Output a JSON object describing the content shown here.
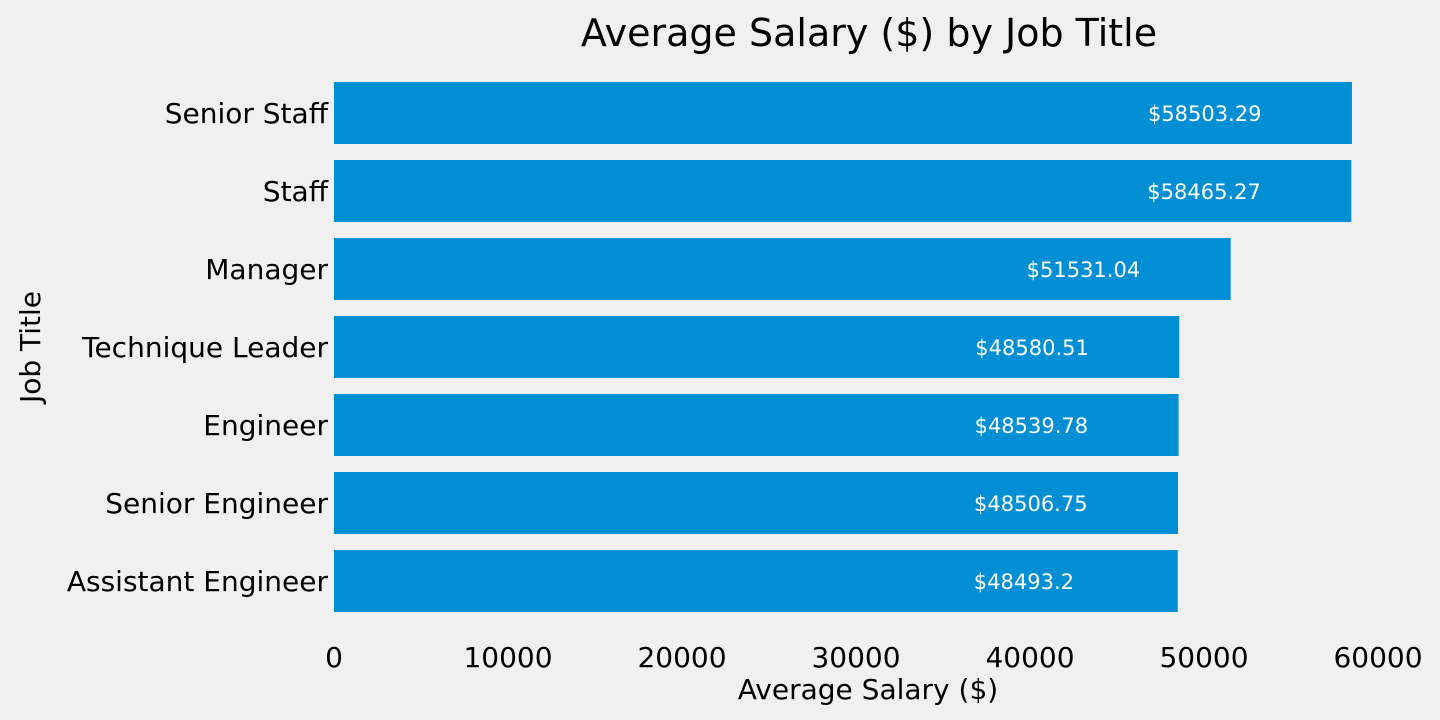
{
  "chart_data": {
    "type": "bar",
    "orientation": "horizontal",
    "title": "Average Salary ($) by Job Title",
    "xlabel": "Average Salary ($)",
    "ylabel": "Job Title",
    "xlim": [
      0,
      60000
    ],
    "xticks": [
      0,
      10000,
      20000,
      30000,
      40000,
      50000,
      60000
    ],
    "grid": false,
    "bar_color": "#008fd5",
    "background_color": "#f0f0f0",
    "categories": [
      "Senior Staff",
      "Staff",
      "Manager",
      "Technique Leader",
      "Engineer",
      "Senior Engineer",
      "Assistant Engineer"
    ],
    "values": [
      58503.29,
      58465.27,
      51531.04,
      48580.51,
      48539.78,
      48506.75,
      48493.2
    ],
    "data_labels": [
      "$58503.29",
      "$58465.27",
      "$51531.04",
      "$48580.51",
      "$48539.78",
      "$48506.75",
      "$48493.2"
    ]
  }
}
